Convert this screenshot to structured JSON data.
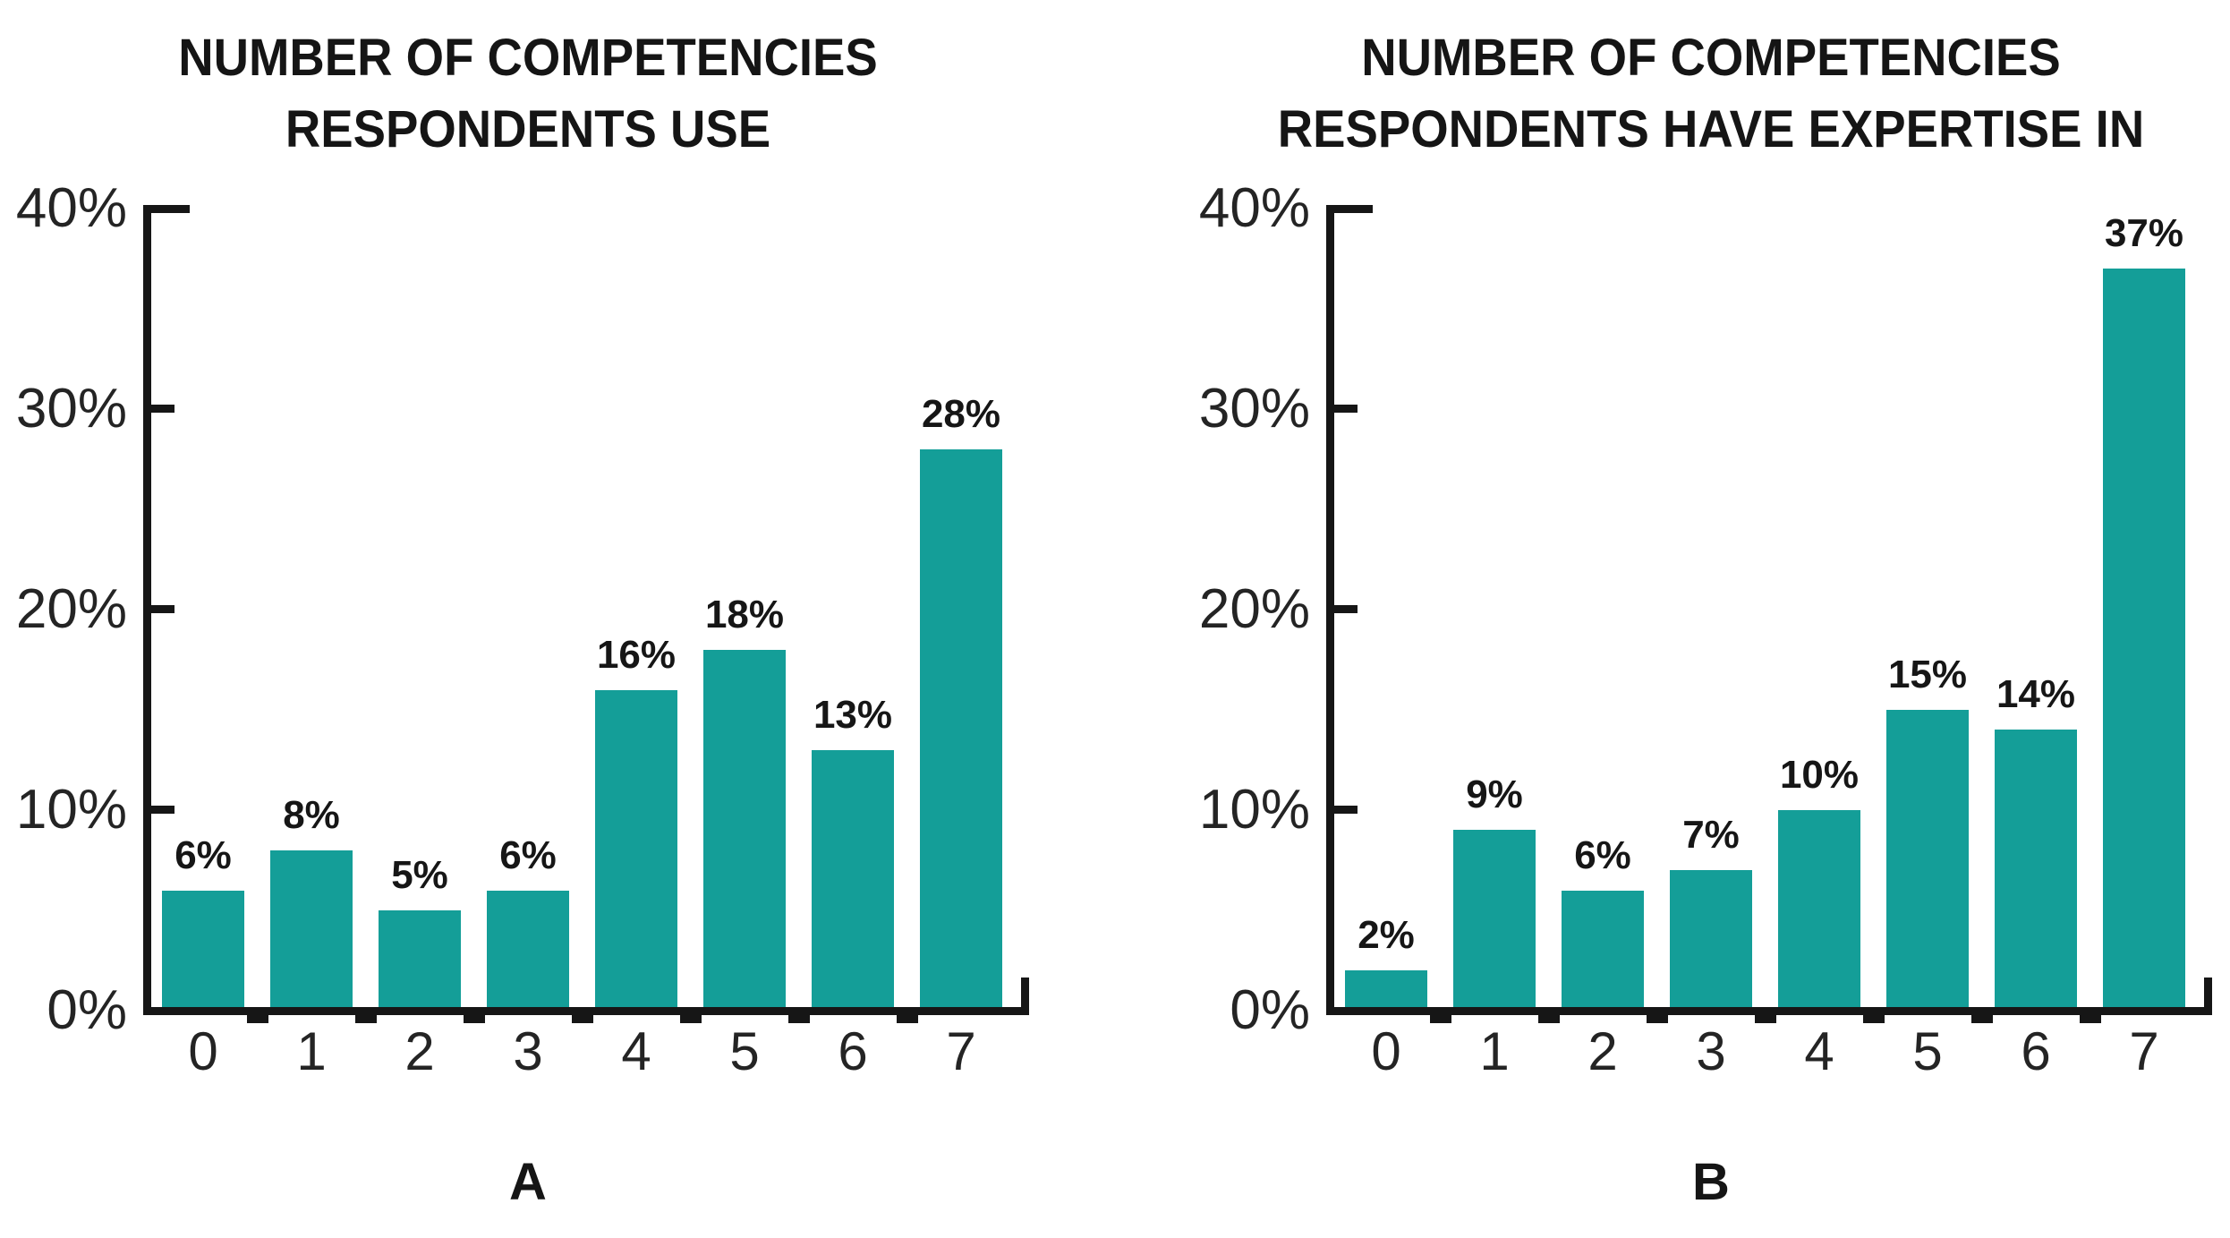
{
  "colors": {
    "bar_teal": "#149e98",
    "axis_black": "#161616",
    "text_black": "#1a1a1a",
    "background": "#ffffff"
  },
  "chart_data": [
    {
      "type": "bar",
      "panel_label": "A",
      "title": "NUMBER OF COMPETENCIES RESPONDENTS USE",
      "title_lines": [
        "NUMBER OF COMPETENCIES",
        "RESPONDENTS USE"
      ],
      "categories": [
        "0",
        "1",
        "2",
        "3",
        "4",
        "5",
        "6",
        "7"
      ],
      "values": [
        6,
        8,
        5,
        6,
        16,
        18,
        13,
        28
      ],
      "value_labels": [
        "6%",
        "8%",
        "5%",
        "6%",
        "16%",
        "18%",
        "13%",
        "28%"
      ],
      "xlabel": "",
      "ylabel": "",
      "ylim": [
        0,
        40
      ],
      "yticks": [
        0,
        10,
        20,
        30,
        40
      ],
      "ytick_labels": [
        "0%",
        "10%",
        "20%",
        "30%",
        "40%"
      ],
      "bar_color": "#149e98",
      "grid": false,
      "legend": "none",
      "value_label_position": "above-bar"
    },
    {
      "type": "bar",
      "panel_label": "B",
      "title": "NUMBER OF COMPETENCIES RESPONDENTS HAVE EXPERTISE IN",
      "title_lines": [
        "NUMBER OF COMPETENCIES",
        "RESPONDENTS HAVE EXPERTISE IN"
      ],
      "categories": [
        "0",
        "1",
        "2",
        "3",
        "4",
        "5",
        "6",
        "7"
      ],
      "values": [
        2,
        9,
        6,
        7,
        10,
        15,
        14,
        37
      ],
      "value_labels": [
        "2%",
        "9%",
        "6%",
        "7%",
        "10%",
        "15%",
        "14%",
        "37%"
      ],
      "xlabel": "",
      "ylabel": "",
      "ylim": [
        0,
        40
      ],
      "yticks": [
        0,
        10,
        20,
        30,
        40
      ],
      "ytick_labels": [
        "0%",
        "10%",
        "20%",
        "30%",
        "40%"
      ],
      "bar_color": "#149e98",
      "grid": false,
      "legend": "none",
      "value_label_position": "above-bar"
    }
  ]
}
